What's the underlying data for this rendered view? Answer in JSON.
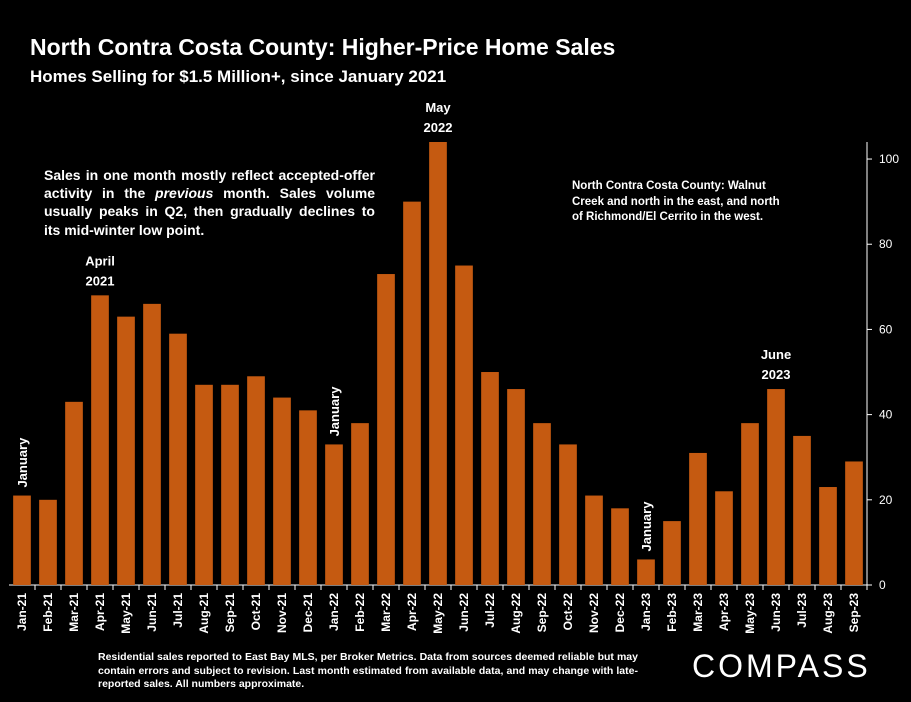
{
  "header": {
    "title": "North Contra Costa County: Higher-Price Home Sales",
    "subtitle": "Homes Selling for $1.5 Million+, since January 2021"
  },
  "notes": {
    "left_pre": "Sales in one month mostly reflect accepted-offer activity in the ",
    "left_italic": "previous",
    "left_post": " month. Sales volume usually peaks in Q2, then gradually declines to its mid-winter low point.",
    "right": "North Contra Costa County: Walnut Creek and north in the east, and north of Richmond/El Cerrito in the west."
  },
  "footer": {
    "text": "Residential sales reported to East Bay MLS, per Broker Metrics. Data from sources deemed reliable but may contain errors and subject to revision.  Last month estimated from available data, and may change with late-reported sales. All numbers approximate."
  },
  "logo": {
    "text": "COMPASS"
  },
  "colors": {
    "bar": "#c55a11",
    "background": "#000000",
    "text": "#ffffff"
  },
  "chart_data": {
    "type": "bar",
    "categories": [
      "Jan-21",
      "Feb-21",
      "Mar-21",
      "Apr-21",
      "May-21",
      "Jun-21",
      "Jul-21",
      "Aug-21",
      "Sep-21",
      "Oct-21",
      "Nov-21",
      "Dec-21",
      "Jan-22",
      "Feb-22",
      "Mar-22",
      "Apr-22",
      "May-22",
      "Jun-22",
      "Jul-22",
      "Aug-22",
      "Sep-22",
      "Oct-22",
      "Nov-22",
      "Dec-22",
      "Jan-23",
      "Feb-23",
      "Mar-23",
      "Apr-23",
      "May-23",
      "Jun-23",
      "Jul-23",
      "Aug-23",
      "Sep-23"
    ],
    "values": [
      21,
      20,
      43,
      68,
      63,
      66,
      59,
      47,
      47,
      49,
      44,
      41,
      33,
      38,
      73,
      90,
      104,
      75,
      50,
      46,
      38,
      33,
      21,
      18,
      6,
      15,
      31,
      22,
      38,
      46,
      35,
      23,
      29
    ],
    "ylim": [
      0,
      104
    ],
    "yticks": [
      0,
      20,
      40,
      60,
      80,
      100
    ],
    "y_axis_side": "right",
    "grid": false,
    "annotations": [
      {
        "index": 0,
        "text": "January",
        "vertical": true
      },
      {
        "index": 3,
        "lines": [
          "April",
          "2021"
        ]
      },
      {
        "index": 12,
        "text": "January",
        "vertical": true
      },
      {
        "index": 16,
        "lines": [
          "May",
          "2022"
        ]
      },
      {
        "index": 24,
        "text": "January",
        "vertical": true
      },
      {
        "index": 29,
        "lines": [
          "June",
          "2023"
        ]
      }
    ]
  }
}
